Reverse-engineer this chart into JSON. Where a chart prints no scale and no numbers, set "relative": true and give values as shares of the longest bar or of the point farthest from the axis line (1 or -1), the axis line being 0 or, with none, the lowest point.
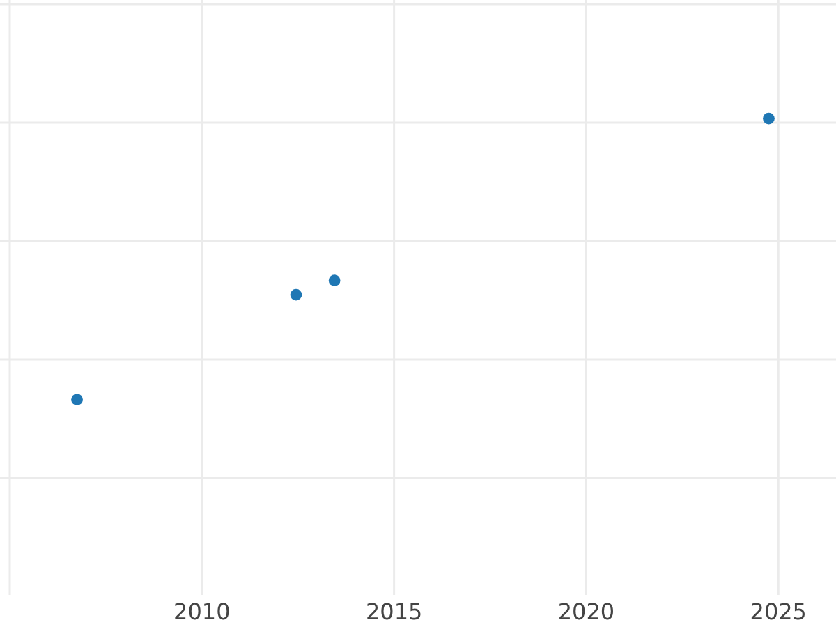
{
  "chart_data": {
    "type": "scatter",
    "relative": true,
    "x": [
      2006.75,
      2012.45,
      2013.45,
      2024.75
    ],
    "series": [
      {
        "color": "#1f77b4",
        "values": [
          0.41,
          0.63,
          0.66,
          1
        ]
      }
    ],
    "xlim": [
      2005,
      2026.5
    ],
    "xticks": [
      2010,
      2015,
      2020,
      2025
    ],
    "grid": true,
    "marker": "circle"
  }
}
